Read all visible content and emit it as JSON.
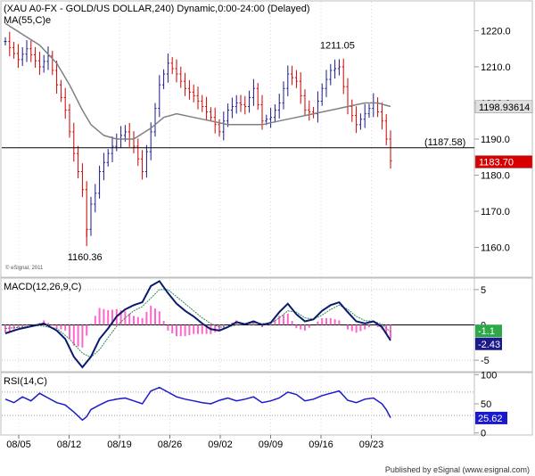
{
  "chart_data": [
    {
      "type": "ohlc",
      "panel": "price",
      "title": "(XAU A0-FX - GOLD/US DOLLAR,240) Dynamic,0:00-24:00 (Delayed)",
      "indicator_label": "MA(55,C)e",
      "copyright": "© eSignal, 2011",
      "ylim": [
        1152,
        1228
      ],
      "yticks": [
        1160.0,
        1170.0,
        1180.0,
        1190.0,
        1200.0,
        1210.0,
        1220.0
      ],
      "ytick_labels": [
        "1160.0",
        "1170.0",
        "1180.0",
        "1190.0",
        "1200.0",
        "1210.0",
        "1220.0"
      ],
      "x_dates": [
        "08/05",
        "08/12",
        "08/19",
        "08/26",
        "09/02",
        "09/09",
        "09/16",
        "09/23"
      ],
      "close_path": [
        [
          0,
          1217
        ],
        [
          3,
          1212
        ],
        [
          5,
          1215
        ],
        [
          8,
          1210
        ],
        [
          10,
          1213
        ],
        [
          12,
          1205
        ],
        [
          14,
          1198
        ],
        [
          16,
          1186
        ],
        [
          18,
          1176
        ],
        [
          19,
          1165
        ],
        [
          20,
          1172
        ],
        [
          21,
          1175
        ],
        [
          22,
          1181
        ],
        [
          24,
          1186
        ],
        [
          26,
          1190
        ],
        [
          28,
          1192
        ],
        [
          30,
          1188
        ],
        [
          32,
          1181
        ],
        [
          34,
          1192
        ],
        [
          36,
          1205
        ],
        [
          38,
          1211
        ],
        [
          40,
          1208
        ],
        [
          42,
          1204
        ],
        [
          44,
          1202
        ],
        [
          46,
          1199
        ],
        [
          48,
          1196
        ],
        [
          50,
          1192
        ],
        [
          52,
          1198
        ],
        [
          54,
          1200
        ],
        [
          56,
          1199
        ],
        [
          58,
          1204
        ],
        [
          60,
          1195
        ],
        [
          62,
          1196
        ],
        [
          64,
          1200
        ],
        [
          66,
          1208
        ],
        [
          68,
          1206
        ],
        [
          70,
          1198
        ],
        [
          72,
          1197
        ],
        [
          74,
          1204
        ],
        [
          76,
          1209
        ],
        [
          78,
          1210
        ],
        [
          80,
          1199
        ],
        [
          82,
          1194
        ],
        [
          84,
          1197
        ],
        [
          86,
          1200
        ],
        [
          88,
          1195
        ],
        [
          89,
          1190
        ],
        [
          90,
          1184
        ]
      ],
      "ma_path": [
        [
          0,
          1222
        ],
        [
          4,
          1219
        ],
        [
          8,
          1216
        ],
        [
          12,
          1211
        ],
        [
          15,
          1205
        ],
        [
          18,
          1198
        ],
        [
          20,
          1194
        ],
        [
          23,
          1191
        ],
        [
          26,
          1190
        ],
        [
          30,
          1190
        ],
        [
          34,
          1193
        ],
        [
          37,
          1196
        ],
        [
          40,
          1197
        ],
        [
          44,
          1196
        ],
        [
          48,
          1195
        ],
        [
          52,
          1194
        ],
        [
          56,
          1194
        ],
        [
          60,
          1194
        ],
        [
          64,
          1195
        ],
        [
          68,
          1196
        ],
        [
          72,
          1197
        ],
        [
          76,
          1198
        ],
        [
          80,
          1199
        ],
        [
          84,
          1200
        ],
        [
          87,
          1200
        ],
        [
          90,
          1199
        ]
      ],
      "ma_color": "#808080",
      "up_color": "#1a1a8c",
      "down_color": "#cc0000",
      "horizontal_line": {
        "value": 1187.58,
        "label": "(1187.58)"
      },
      "annotations": [
        {
          "text": "1211.05",
          "x": 78,
          "value": 1211.05
        },
        {
          "text": "1160.36",
          "x": 19,
          "value": 1160.36
        }
      ],
      "last_values": [
        {
          "text": "1198.93614",
          "value": 1198.93614,
          "bg": "#e0e0e0",
          "fg": "#000000"
        },
        {
          "text": "1183.70",
          "value": 1183.7,
          "bg": "#d60000",
          "fg": "#ffffff"
        }
      ]
    },
    {
      "type": "macd",
      "panel": "macd",
      "title": "MACD(12,26,9,C)",
      "ylim": [
        -6.5,
        6.5
      ],
      "yticks": [
        5,
        0,
        -5
      ],
      "ytick_labels": [
        "5",
        "0",
        "-5"
      ],
      "macd_path": [
        [
          0,
          -1.2
        ],
        [
          3,
          -0.6
        ],
        [
          6,
          -0.2
        ],
        [
          9,
          0.2
        ],
        [
          12,
          -0.8
        ],
        [
          14,
          -2
        ],
        [
          16,
          -4.5
        ],
        [
          18,
          -6
        ],
        [
          20,
          -4.5
        ],
        [
          22,
          -2
        ],
        [
          24,
          -0.5
        ],
        [
          26,
          1.2
        ],
        [
          28,
          2.2
        ],
        [
          30,
          2.8
        ],
        [
          32,
          3.2
        ],
        [
          34,
          5.5
        ],
        [
          36,
          6.2
        ],
        [
          38,
          4.5
        ],
        [
          40,
          3
        ],
        [
          42,
          2
        ],
        [
          44,
          1.2
        ],
        [
          46,
          0.2
        ],
        [
          48,
          -0.6
        ],
        [
          50,
          -0.8
        ],
        [
          52,
          -0.3
        ],
        [
          54,
          0.4
        ],
        [
          56,
          0.1
        ],
        [
          58,
          0.5
        ],
        [
          60,
          0
        ],
        [
          62,
          0.3
        ],
        [
          64,
          1.8
        ],
        [
          66,
          3
        ],
        [
          68,
          1.5
        ],
        [
          70,
          0.5
        ],
        [
          72,
          0.8
        ],
        [
          74,
          2
        ],
        [
          76,
          2.8
        ],
        [
          78,
          3.2
        ],
        [
          80,
          1.8
        ],
        [
          82,
          0.5
        ],
        [
          84,
          0.2
        ],
        [
          86,
          0.5
        ],
        [
          88,
          -0.3
        ],
        [
          90,
          -2.2
        ]
      ],
      "signal_path": [
        [
          0,
          -0.5
        ],
        [
          4,
          -0.3
        ],
        [
          8,
          -0.1
        ],
        [
          12,
          -0.5
        ],
        [
          15,
          -2
        ],
        [
          18,
          -4
        ],
        [
          20,
          -4.6
        ],
        [
          22,
          -3.5
        ],
        [
          24,
          -1.8
        ],
        [
          26,
          -0.2
        ],
        [
          28,
          1
        ],
        [
          30,
          2
        ],
        [
          32,
          2.6
        ],
        [
          34,
          3.8
        ],
        [
          36,
          5
        ],
        [
          38,
          5
        ],
        [
          40,
          4
        ],
        [
          42,
          3
        ],
        [
          44,
          2
        ],
        [
          46,
          1
        ],
        [
          48,
          0.2
        ],
        [
          50,
          -0.3
        ],
        [
          52,
          -0.3
        ],
        [
          54,
          0
        ],
        [
          56,
          0.1
        ],
        [
          58,
          0.3
        ],
        [
          60,
          0.2
        ],
        [
          62,
          0.2
        ],
        [
          64,
          1
        ],
        [
          66,
          2
        ],
        [
          68,
          1.8
        ],
        [
          70,
          1
        ],
        [
          72,
          0.8
        ],
        [
          74,
          1.4
        ],
        [
          76,
          2.2
        ],
        [
          78,
          2.8
        ],
        [
          80,
          2.2
        ],
        [
          82,
          1.2
        ],
        [
          84,
          0.6
        ],
        [
          86,
          0.5
        ],
        [
          88,
          0.1
        ],
        [
          90,
          -1
        ]
      ],
      "histogram_color": "#ff66cc",
      "macd_color": "#0a1a6e",
      "signal_color": "#2e8b57",
      "last_values": [
        {
          "text": "-1.1",
          "value": -1.1,
          "bg": "#2fa84a",
          "fg": "#ffffff"
        },
        {
          "text": "-2.43",
          "value": -2.43,
          "bg": "#1a1a8c",
          "fg": "#ffffff"
        }
      ]
    },
    {
      "type": "line",
      "panel": "rsi",
      "title": "RSI(14,C)",
      "ylim": [
        -2,
        102
      ],
      "yticks": [
        100,
        50,
        0
      ],
      "ytick_labels": [
        "100",
        "50",
        "0"
      ],
      "ref_lines": [
        70,
        30
      ],
      "rsi_path": [
        [
          0,
          58
        ],
        [
          2,
          52
        ],
        [
          4,
          62
        ],
        [
          6,
          55
        ],
        [
          8,
          68
        ],
        [
          10,
          60
        ],
        [
          12,
          52
        ],
        [
          14,
          48
        ],
        [
          16,
          36
        ],
        [
          18,
          22
        ],
        [
          19,
          28
        ],
        [
          20,
          40
        ],
        [
          22,
          48
        ],
        [
          24,
          55
        ],
        [
          26,
          58
        ],
        [
          28,
          60
        ],
        [
          30,
          55
        ],
        [
          32,
          50
        ],
        [
          34,
          72
        ],
        [
          36,
          78
        ],
        [
          38,
          70
        ],
        [
          40,
          62
        ],
        [
          42,
          58
        ],
        [
          44,
          55
        ],
        [
          46,
          52
        ],
        [
          48,
          50
        ],
        [
          50,
          56
        ],
        [
          52,
          60
        ],
        [
          54,
          55
        ],
        [
          56,
          58
        ],
        [
          58,
          62
        ],
        [
          60,
          52
        ],
        [
          62,
          55
        ],
        [
          64,
          60
        ],
        [
          66,
          70
        ],
        [
          68,
          66
        ],
        [
          70,
          55
        ],
        [
          72,
          58
        ],
        [
          74,
          64
        ],
        [
          76,
          68
        ],
        [
          78,
          72
        ],
        [
          80,
          56
        ],
        [
          82,
          52
        ],
        [
          84,
          58
        ],
        [
          86,
          60
        ],
        [
          88,
          50
        ],
        [
          89,
          40
        ],
        [
          90,
          26
        ]
      ],
      "line_color": "#1a1acc",
      "last_values": [
        {
          "text": "25.62",
          "value": 25.62,
          "bg": "#1a1acc",
          "fg": "#ffffff"
        }
      ]
    }
  ],
  "footer": {
    "publisher": "Published by eSignal (www.esignal.com)"
  }
}
